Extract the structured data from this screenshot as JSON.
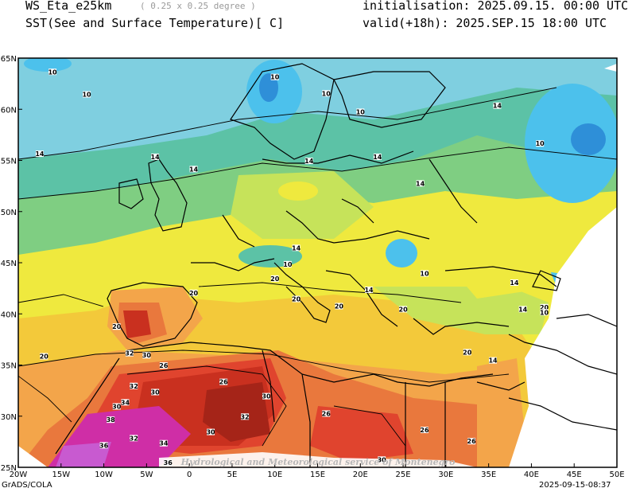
{
  "header": {
    "model": "WS_Eta_e25km",
    "resolution": "( 0.25 x 0.25 degree )",
    "field": "SST(See and Surface Temperature)[ C]",
    "init": "initialisation: 2025.09.15. 00:00 UTC",
    "valid": "valid(+18h): 2025.SEP.15 18:00 UTC"
  },
  "map": {
    "lon_ticks": [
      "20W",
      "15W",
      "10W",
      "5W",
      "0",
      "5E",
      "10E",
      "15E",
      "20E",
      "25E",
      "30E",
      "35E",
      "40E",
      "45E",
      "50E"
    ],
    "lat_ticks": [
      "25N",
      "30N",
      "35N",
      "40N",
      "45N",
      "50N",
      "55N",
      "60N",
      "65N"
    ],
    "watermark": "Hydrological and Meteorological service of Montenegro",
    "contour_labels": [
      {
        "text": "10",
        "lon": -16,
        "lat": 63.5
      },
      {
        "text": "10",
        "lon": -12,
        "lat": 61.3
      },
      {
        "text": "10",
        "lon": 10,
        "lat": 63
      },
      {
        "text": "10",
        "lon": 16,
        "lat": 61.4
      },
      {
        "text": "10",
        "lon": 20,
        "lat": 59.6
      },
      {
        "text": "14",
        "lon": 36,
        "lat": 60.2
      },
      {
        "text": "10",
        "lon": 41,
        "lat": 56.5
      },
      {
        "text": "14",
        "lon": -17.5,
        "lat": 55.5
      },
      {
        "text": "14",
        "lon": -4,
        "lat": 55.2
      },
      {
        "text": "14",
        "lon": 0.5,
        "lat": 54
      },
      {
        "text": "14",
        "lon": 14,
        "lat": 54.8
      },
      {
        "text": "14",
        "lon": 22,
        "lat": 55.2
      },
      {
        "text": "14",
        "lon": 27,
        "lat": 52.6
      },
      {
        "text": "14",
        "lon": 12.5,
        "lat": 46.3
      },
      {
        "text": "10",
        "lon": 11.5,
        "lat": 44.7
      },
      {
        "text": "20",
        "lon": 10,
        "lat": 43.3
      },
      {
        "text": "10",
        "lon": 27.5,
        "lat": 43.8
      },
      {
        "text": "14",
        "lon": 21,
        "lat": 42.2
      },
      {
        "text": "14",
        "lon": 38,
        "lat": 42.9
      },
      {
        "text": "20",
        "lon": 0.5,
        "lat": 41.9
      },
      {
        "text": "20",
        "lon": 12.5,
        "lat": 41.3
      },
      {
        "text": "20",
        "lon": 17.5,
        "lat": 40.6
      },
      {
        "text": "20",
        "lon": 25,
        "lat": 40.3
      },
      {
        "text": "14",
        "lon": 39,
        "lat": 40.3
      },
      {
        "text": "20",
        "lon": 41.5,
        "lat": 40.5
      },
      {
        "text": "10",
        "lon": 41.5,
        "lat": 40
      },
      {
        "text": "20",
        "lon": -8.5,
        "lat": 38.6
      },
      {
        "text": "20",
        "lon": -17,
        "lat": 35.7
      },
      {
        "text": "32",
        "lon": -7,
        "lat": 36
      },
      {
        "text": "30",
        "lon": -5,
        "lat": 35.8
      },
      {
        "text": "26",
        "lon": -3,
        "lat": 34.8
      },
      {
        "text": "20",
        "lon": 32.5,
        "lat": 36.1
      },
      {
        "text": "14",
        "lon": 35.5,
        "lat": 35.3
      },
      {
        "text": "26",
        "lon": 4,
        "lat": 33.2
      },
      {
        "text": "32",
        "lon": -6.5,
        "lat": 32.8
      },
      {
        "text": "30",
        "lon": -4,
        "lat": 32.2
      },
      {
        "text": "30",
        "lon": 9,
        "lat": 31.8
      },
      {
        "text": "34",
        "lon": -7.5,
        "lat": 31.2
      },
      {
        "text": "30",
        "lon": -8.5,
        "lat": 30.8
      },
      {
        "text": "32",
        "lon": 6.5,
        "lat": 29.8
      },
      {
        "text": "26",
        "lon": 16,
        "lat": 30.1
      },
      {
        "text": "38",
        "lon": -9.2,
        "lat": 29.5
      },
      {
        "text": "30",
        "lon": 2.5,
        "lat": 28.3
      },
      {
        "text": "32",
        "lon": -6.5,
        "lat": 27.7
      },
      {
        "text": "26",
        "lon": 27.5,
        "lat": 28.5
      },
      {
        "text": "26",
        "lon": 33,
        "lat": 27.4
      },
      {
        "text": "34",
        "lon": -3,
        "lat": 27.2
      },
      {
        "text": "36",
        "lon": -10,
        "lat": 27
      },
      {
        "text": "36",
        "lon": -2.5,
        "lat": 25.3
      },
      {
        "text": "30",
        "lon": 22.5,
        "lat": 25.6
      }
    ]
  },
  "footer": {
    "left": "GrADS/COLA",
    "right": "2025-09-15-08:37"
  },
  "colors": {
    "t_lt8": "#2e8fd8",
    "t_8_10": "#4cc1ec",
    "t_10_12": "#7fcfe0",
    "t_12_14": "#5cc2a6",
    "t_14_16": "#7fce82",
    "t_16_18": "#c6e35a",
    "t_18_20": "#efe93e",
    "t_20_22": "#f3c93a",
    "t_22_24": "#f3a54a",
    "t_24_26": "#e9783d",
    "t_26_28": "#e0442e",
    "t_28_30": "#c9301f",
    "t_30_32": "#a52418",
    "t_32_34": "#cf2ea6",
    "t_gt34": "#c85ad0"
  }
}
